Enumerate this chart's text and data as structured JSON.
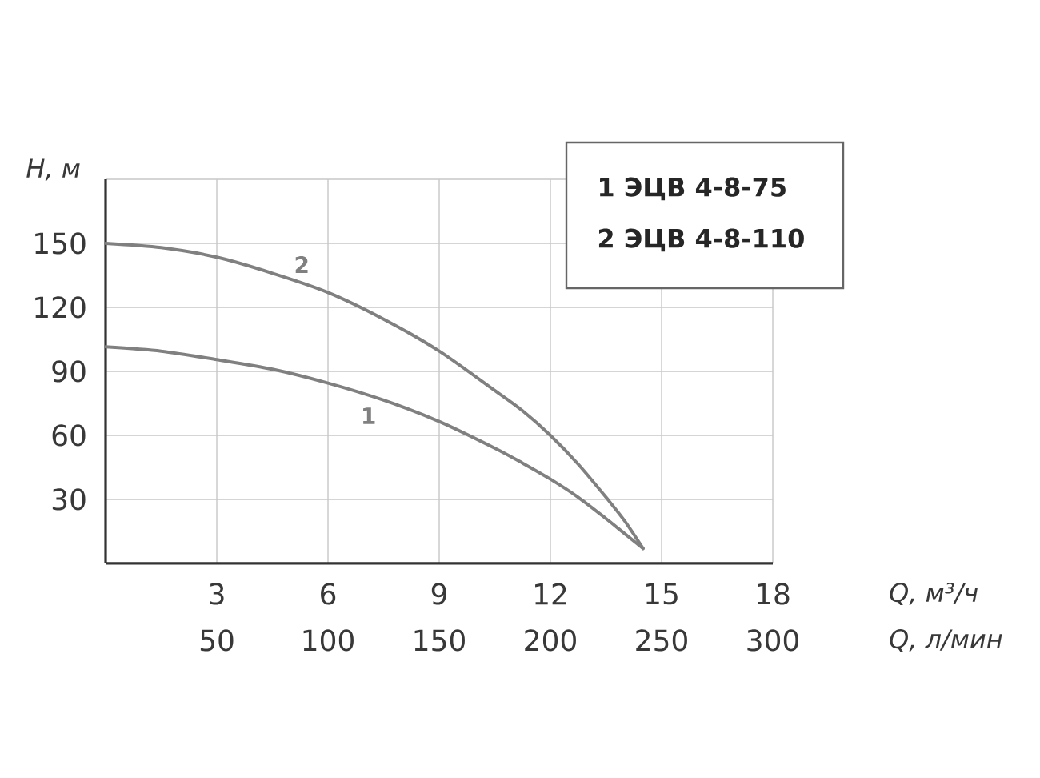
{
  "chart_data": {
    "type": "line",
    "xlabel": "Q, м³/ч",
    "ylabel": "H, м",
    "x2label": "Q, л/мин",
    "xlim": [
      0,
      18
    ],
    "xticks": [
      3,
      6,
      9,
      12,
      15,
      18
    ],
    "x2lim": [
      0,
      300
    ],
    "x2ticks": [
      50,
      100,
      150,
      200,
      250,
      300
    ],
    "ylim": [
      0,
      180
    ],
    "yticks": [
      30,
      60,
      90,
      120,
      150,
      {
        "value": 180,
        "label": null
      }
    ],
    "grid": true,
    "series": [
      {
        "name": "1",
        "color": "#808080",
        "x": [
          0,
          1.5,
          3,
          4.5,
          6,
          7.5,
          9,
          10.5,
          11.25,
          12,
          12.75,
          13.5,
          14,
          14.5
        ],
        "values": [
          101.5,
          99.5,
          95.5,
          91,
          84.5,
          76.5,
          66.5,
          54,
          47,
          39.5,
          31,
          21,
          14,
          7
        ]
      },
      {
        "name": "2",
        "color": "#808080",
        "x": [
          0,
          1.5,
          3,
          4.5,
          6,
          7.5,
          9,
          10.5,
          11.25,
          12,
          12.75,
          13.5,
          14,
          14.5
        ],
        "values": [
          150,
          148,
          143.5,
          136,
          127,
          114.5,
          99.5,
          81,
          71.5,
          60,
          46.5,
          31,
          20,
          7
        ]
      }
    ],
    "annotations": [
      "1 ЭЦВ 4-8-75",
      "2 ЭЦВ 4-8-110"
    ]
  }
}
